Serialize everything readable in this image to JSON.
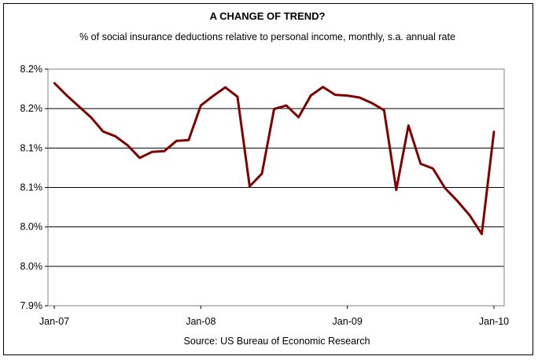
{
  "chart_data": {
    "type": "line",
    "title": "A CHANGE OF TREND?",
    "subtitle": "% of social insurance deductions relative to personal income, monthly, s.a. annual rate",
    "source": "Source: US Bureau of Economic Research",
    "xlabel": "",
    "ylabel": "",
    "x_tick_labels": [
      "Jan-07",
      "Jan-08",
      "Jan-09",
      "Jan-10"
    ],
    "y_tick_labels": [
      "8.2%",
      "8.2%",
      "8.1%",
      "8.1%",
      "8.0%",
      "8.0%",
      "7.9%"
    ],
    "ylim": [
      7.9,
      8.2
    ],
    "grid": true,
    "line_color": "#800000",
    "x": [
      "Jan-07",
      "Feb-07",
      "Mar-07",
      "Apr-07",
      "May-07",
      "Jun-07",
      "Jul-07",
      "Aug-07",
      "Sep-07",
      "Oct-07",
      "Nov-07",
      "Dec-07",
      "Jan-08",
      "Feb-08",
      "Mar-08",
      "Apr-08",
      "May-08",
      "Jun-08",
      "Jul-08",
      "Aug-08",
      "Sep-08",
      "Oct-08",
      "Nov-08",
      "Dec-08",
      "Jan-09",
      "Feb-09",
      "Mar-09",
      "Apr-09",
      "May-09",
      "Jun-09",
      "Jul-09",
      "Aug-09",
      "Sep-09",
      "Oct-09",
      "Nov-09",
      "Dec-09",
      "Jan-10"
    ],
    "series": [
      {
        "values": [
          8.1825,
          8.167,
          8.153,
          8.139,
          8.121,
          8.115,
          8.1035,
          8.0875,
          8.095,
          8.096,
          8.109,
          8.11,
          8.154,
          8.166,
          8.177,
          8.165,
          8.0515,
          8.0675,
          8.1495,
          8.154,
          8.139,
          8.1665,
          8.1775,
          8.1675,
          8.1665,
          8.164,
          8.157,
          8.148,
          8.047,
          8.1285,
          8.08,
          8.074,
          8.049,
          8.033,
          8.015,
          7.991,
          8.121
        ]
      }
    ]
  }
}
